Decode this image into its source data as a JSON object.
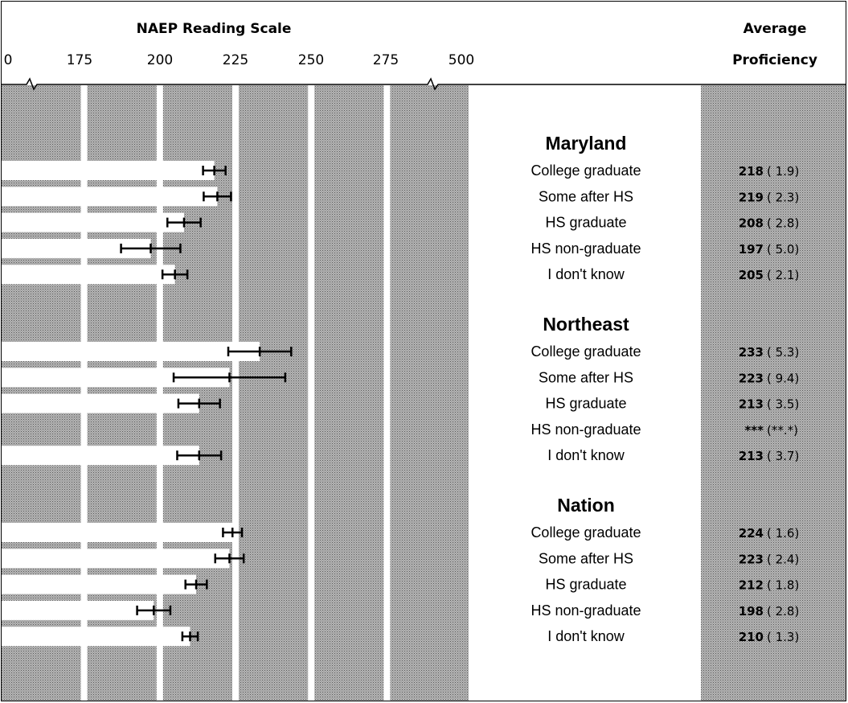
{
  "header": {
    "scale_title": "NAEP Reading Scale",
    "proficiency_title_line1": "Average",
    "proficiency_title_line2": "Proficiency"
  },
  "colors": {
    "shade": "#a9a9a9",
    "bar": "#ffffff",
    "line": "#000000"
  },
  "chart_data": {
    "type": "bar",
    "orientation": "horizontal",
    "x_ticks": [
      "0",
      "175",
      "200",
      "225",
      "250",
      "275",
      "500"
    ],
    "xlim": [
      160,
      290
    ],
    "axis_breaks": [
      "0-175",
      "275-500"
    ],
    "grid": true,
    "groups": [
      {
        "name": "Maryland",
        "rows": [
          {
            "label": "College graduate",
            "value": 218,
            "se": 1.9,
            "value_text": "218",
            "se_text": "( 1.9)"
          },
          {
            "label": "Some after HS",
            "value": 219,
            "se": 2.3,
            "value_text": "219",
            "se_text": "( 2.3)"
          },
          {
            "label": "HS graduate",
            "value": 208,
            "se": 2.8,
            "value_text": "208",
            "se_text": "( 2.8)"
          },
          {
            "label": "HS non-graduate",
            "value": 197,
            "se": 5.0,
            "value_text": "197",
            "se_text": "( 5.0)"
          },
          {
            "label": "I don't know",
            "value": 205,
            "se": 2.1,
            "value_text": "205",
            "se_text": "( 2.1)"
          }
        ]
      },
      {
        "name": "Northeast",
        "rows": [
          {
            "label": "College graduate",
            "value": 233,
            "se": 5.3,
            "value_text": "233",
            "se_text": "( 5.3)"
          },
          {
            "label": "Some after HS",
            "value": 223,
            "se": 9.4,
            "value_text": "223",
            "se_text": "( 9.4)"
          },
          {
            "label": "HS graduate",
            "value": 213,
            "se": 3.5,
            "value_text": "213",
            "se_text": "( 3.5)"
          },
          {
            "label": "HS non-graduate",
            "value": null,
            "se": null,
            "value_text": "***",
            "se_text": "(**.*)"
          },
          {
            "label": "I don't know",
            "value": 213,
            "se": 3.7,
            "value_text": "213",
            "se_text": "( 3.7)"
          }
        ]
      },
      {
        "name": "Nation",
        "rows": [
          {
            "label": "College graduate",
            "value": 224,
            "se": 1.6,
            "value_text": "224",
            "se_text": "( 1.6)"
          },
          {
            "label": "Some after HS",
            "value": 223,
            "se": 2.4,
            "value_text": "223",
            "se_text": "( 2.4)"
          },
          {
            "label": "HS graduate",
            "value": 212,
            "se": 1.8,
            "value_text": "212",
            "se_text": "( 1.8)"
          },
          {
            "label": "HS non-graduate",
            "value": 198,
            "se": 2.8,
            "value_text": "198",
            "se_text": "( 2.8)"
          },
          {
            "label": "I don't know",
            "value": 210,
            "se": 1.3,
            "value_text": "210",
            "se_text": "( 1.3)"
          }
        ]
      }
    ]
  }
}
